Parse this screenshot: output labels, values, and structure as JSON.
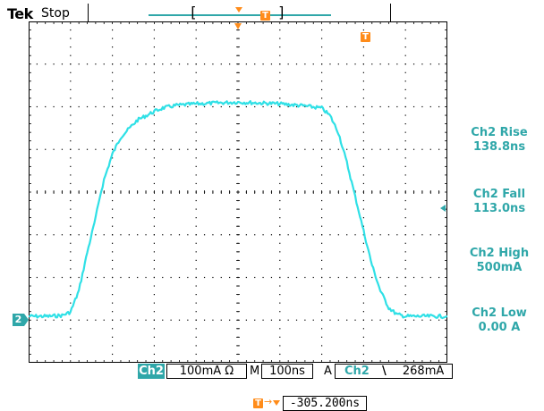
{
  "header": {
    "brand": "Tek",
    "acquisition_status": "Stop",
    "record_left_bracket": "[",
    "record_right_bracket": "]",
    "trigger_marker_label": "T"
  },
  "channel": {
    "badge": "2",
    "color": "#2fa7a9"
  },
  "trigger_color": "#ff8c1a",
  "measurements": [
    {
      "name": "Ch2 Rise",
      "value": "138.8ns"
    },
    {
      "name": "Ch2 Fall",
      "value": "113.0ns"
    },
    {
      "name": "Ch2 High",
      "value": "500mA"
    },
    {
      "name": "Ch2 Low",
      "value": "0.00 A"
    }
  ],
  "status_bar": {
    "channel": "Ch2",
    "scale": "100mA",
    "scale_unit_symbol": "Ω",
    "timebase_mode": "M",
    "timebase": "100ns",
    "trigger_mode": "A",
    "trigger_source": "Ch2",
    "trigger_slope": "\\",
    "trigger_level": "268mA"
  },
  "horizontal_position": {
    "label": "T",
    "arrow": "→",
    "value": "-305.200ns"
  },
  "chart_data": {
    "type": "line",
    "grid": true,
    "x_divisions": 10,
    "y_divisions": 8,
    "x_units": "ns",
    "y_units": "mA",
    "x_per_div": 100,
    "y_per_div": 100,
    "x": [
      -500,
      -450,
      -420,
      -400,
      -380,
      -360,
      -340,
      -330,
      -320,
      -300,
      -280,
      -260,
      -240,
      -220,
      -200,
      -180,
      -150,
      -100,
      -50,
      0,
      50,
      100,
      150,
      200,
      220,
      240,
      260,
      280,
      300,
      320,
      340,
      360,
      380,
      400,
      420,
      450,
      500
    ],
    "y": [
      0,
      0,
      2,
      10,
      60,
      150,
      230,
      280,
      320,
      380,
      420,
      440,
      460,
      470,
      480,
      488,
      494,
      498,
      500,
      502,
      500,
      498,
      494,
      488,
      470,
      430,
      360,
      280,
      200,
      120,
      60,
      20,
      4,
      0,
      0,
      0,
      0
    ]
  }
}
